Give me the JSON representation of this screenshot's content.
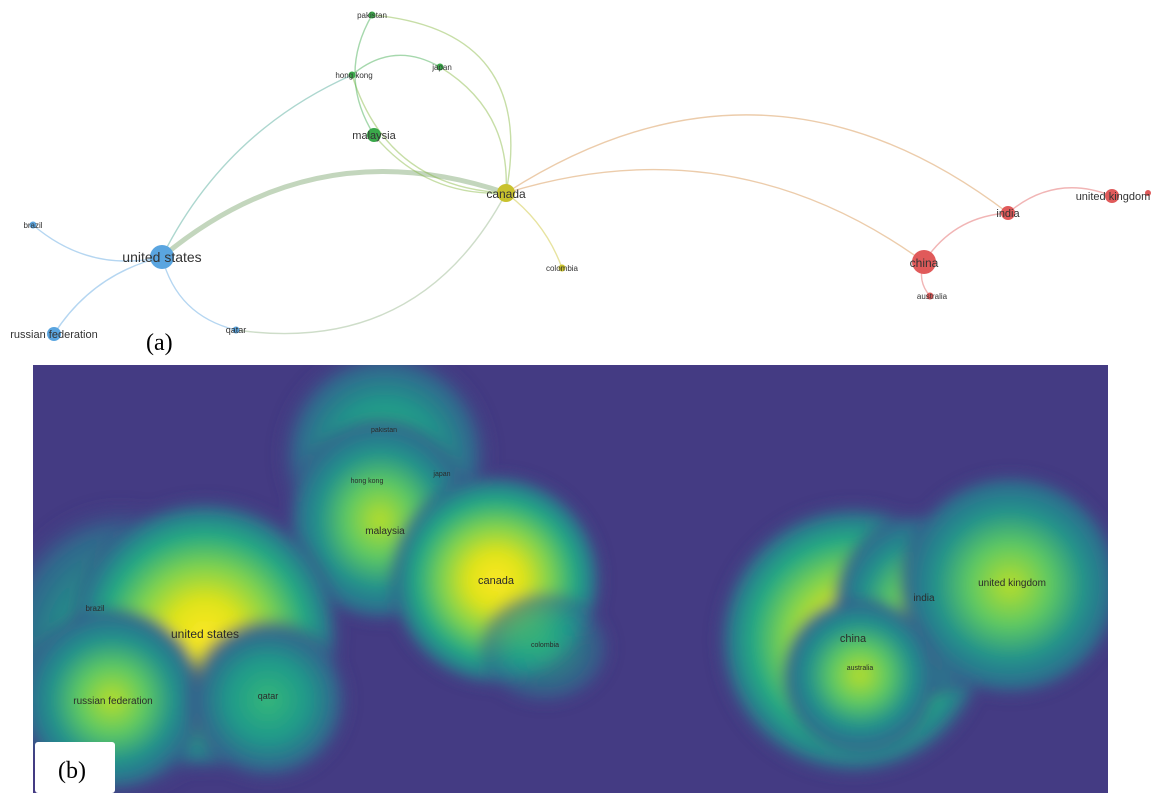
{
  "panel_a": {
    "label": "(a)",
    "nodes": [
      {
        "id": "pakistan",
        "label": "pakistan",
        "cluster": "green",
        "size": "small"
      },
      {
        "id": "hong_kong",
        "label": "hong kong",
        "cluster": "green",
        "size": "small"
      },
      {
        "id": "japan",
        "label": "japan",
        "cluster": "green",
        "size": "small"
      },
      {
        "id": "malaysia",
        "label": "malaysia",
        "cluster": "green",
        "size": "medium"
      },
      {
        "id": "canada",
        "label": "canada",
        "cluster": "yellow",
        "size": "large"
      },
      {
        "id": "colombia",
        "label": "colombia",
        "cluster": "yellow",
        "size": "small"
      },
      {
        "id": "brazil",
        "label": "brazil",
        "cluster": "blue",
        "size": "small"
      },
      {
        "id": "united_states",
        "label": "united states",
        "cluster": "blue",
        "size": "xlarge"
      },
      {
        "id": "russian_federation",
        "label": "russian federation",
        "cluster": "blue",
        "size": "medium"
      },
      {
        "id": "qatar",
        "label": "qatar",
        "cluster": "blue",
        "size": "small"
      },
      {
        "id": "china",
        "label": "china",
        "cluster": "red",
        "size": "xlarge"
      },
      {
        "id": "india",
        "label": "india",
        "cluster": "red",
        "size": "medium"
      },
      {
        "id": "united_kingdom",
        "label": "united kingdom",
        "cluster": "red",
        "size": "medium"
      },
      {
        "id": "australia",
        "label": "australia",
        "cluster": "red",
        "size": "small"
      }
    ],
    "links": [
      {
        "source": "united_states",
        "target": "canada",
        "weight": "strong"
      },
      {
        "source": "united_states",
        "target": "hong_kong",
        "weight": "normal"
      },
      {
        "source": "united_states",
        "target": "brazil",
        "weight": "normal"
      },
      {
        "source": "united_states",
        "target": "russian_federation",
        "weight": "normal"
      },
      {
        "source": "united_states",
        "target": "qatar",
        "weight": "normal"
      },
      {
        "source": "qatar",
        "target": "canada",
        "weight": "normal"
      },
      {
        "source": "canada",
        "target": "malaysia",
        "weight": "normal"
      },
      {
        "source": "canada",
        "target": "pakistan",
        "weight": "normal"
      },
      {
        "source": "canada",
        "target": "japan",
        "weight": "normal"
      },
      {
        "source": "canada",
        "target": "hong_kong",
        "weight": "normal"
      },
      {
        "source": "canada",
        "target": "colombia",
        "weight": "normal"
      },
      {
        "source": "canada",
        "target": "india",
        "weight": "normal"
      },
      {
        "source": "canada",
        "target": "china",
        "weight": "normal"
      },
      {
        "source": "malaysia",
        "target": "pakistan",
        "weight": "normal"
      },
      {
        "source": "hong_kong",
        "target": "japan",
        "weight": "normal"
      },
      {
        "source": "china",
        "target": "india",
        "weight": "normal"
      },
      {
        "source": "china",
        "target": "australia",
        "weight": "normal"
      },
      {
        "source": "india",
        "target": "united_kingdom",
        "weight": "normal"
      }
    ],
    "cluster_colors": {
      "blue": "#5aa5e0",
      "green": "#3aa84a",
      "yellow": "#c9c22d",
      "red": "#e05a5a"
    }
  },
  "panel_b": {
    "label": "(b)",
    "background_color": "#443b83",
    "labels": [
      {
        "id": "pakistan",
        "label": "pakistan"
      },
      {
        "id": "japan",
        "label": "japan"
      },
      {
        "id": "hong_kong",
        "label": "hong kong"
      },
      {
        "id": "malaysia",
        "label": "malaysia"
      },
      {
        "id": "canada",
        "label": "canada"
      },
      {
        "id": "colombia",
        "label": "colombia"
      },
      {
        "id": "brazil",
        "label": "brazil"
      },
      {
        "id": "united_states",
        "label": "united states"
      },
      {
        "id": "russian_federation",
        "label": "russian federation"
      },
      {
        "id": "qatar",
        "label": "qatar"
      },
      {
        "id": "china",
        "label": "china"
      },
      {
        "id": "india",
        "label": "india"
      },
      {
        "id": "united_kingdom",
        "label": "united kingdom"
      },
      {
        "id": "australia",
        "label": "australia"
      }
    ]
  }
}
